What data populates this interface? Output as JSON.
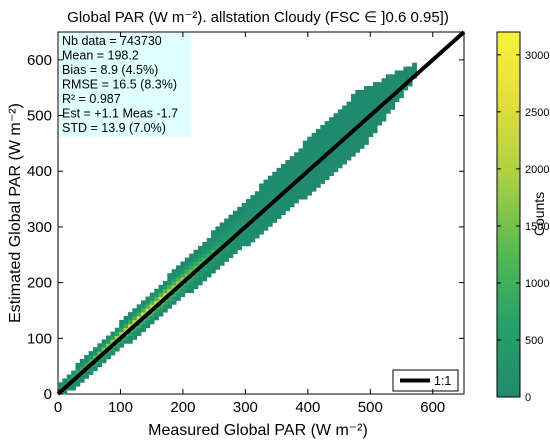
{
  "chart_data": {
    "type": "heatmap",
    "title": "Global PAR (W m⁻²). allstation  Cloudy (FSC ∈ ]0.6 0.95])",
    "xlabel": "Measured Global PAR (W m⁻²)",
    "ylabel": "Estimated Global PAR (W m⁻²)",
    "xlim": [
      0,
      650
    ],
    "ylim": [
      0,
      650
    ],
    "x_ticks": [
      "0",
      "100",
      "200",
      "300",
      "400",
      "500",
      "600"
    ],
    "y_ticks": [
      "0",
      "100",
      "200",
      "300",
      "400",
      "500",
      "600"
    ],
    "grid": false,
    "legend": {
      "position": "bottom-right",
      "entries": [
        "1:1"
      ]
    },
    "colorbar": {
      "label": "Counts",
      "range": [
        0,
        3200
      ],
      "ticks": [
        "0",
        "500",
        "1000",
        "1500",
        "2000",
        "2500",
        "3000"
      ],
      "colormap": [
        "#1f8a6e",
        "#26a268",
        "#57ba52",
        "#a9cf43",
        "#e1dd3b",
        "#f8f43c"
      ]
    },
    "stats": {
      "lines": [
        "Nb data  = 743730",
        "Mean    = 198.2",
        "Bias     =  8.9 (4.5%)",
        "RMSE  = 16.5  (8.3%)",
        "R²      = 0.987",
        "Est  = +1.1 Meas -1.7",
        "STD      = 13.9 (7.0%)"
      ]
    },
    "density": {
      "x_range": [
        0,
        570
      ],
      "center_slope": 1.01,
      "center_intercept": 3,
      "peak_x": 130,
      "peak_count": 3150
    },
    "reference_line": {
      "name": "1:1",
      "x": [
        0,
        650
      ],
      "y": [
        0,
        650
      ],
      "color": "#000000"
    }
  }
}
